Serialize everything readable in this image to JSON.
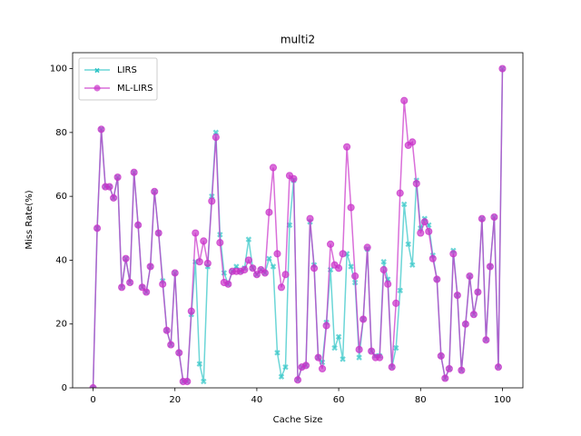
{
  "chart_data": {
    "type": "line",
    "title": "multi2",
    "xlabel": "Cache Size",
    "ylabel": "Miss Rate(%)",
    "x": [
      0,
      1,
      2,
      3,
      4,
      5,
      6,
      7,
      8,
      9,
      10,
      11,
      12,
      13,
      14,
      15,
      16,
      17,
      18,
      19,
      20,
      21,
      22,
      23,
      24,
      25,
      26,
      27,
      28,
      29,
      30,
      31,
      32,
      33,
      34,
      35,
      36,
      37,
      38,
      39,
      40,
      41,
      42,
      43,
      44,
      45,
      46,
      47,
      48,
      49,
      50,
      51,
      52,
      53,
      54,
      55,
      56,
      57,
      58,
      59,
      60,
      61,
      62,
      63,
      64,
      65,
      66,
      67,
      68,
      69,
      70,
      71,
      72,
      73,
      74,
      75,
      76,
      77,
      78,
      79,
      80,
      81,
      82,
      83,
      84,
      85,
      86,
      87,
      88,
      89,
      90,
      91,
      92,
      93,
      94,
      95,
      96,
      97,
      98,
      99,
      100
    ],
    "series": [
      {
        "name": "LIRS",
        "color": "#2ec4c6",
        "marker": "x",
        "values": [
          0,
          50,
          81,
          63,
          63,
          59.5,
          66,
          31.5,
          40.5,
          33,
          67.5,
          51,
          31.5,
          30,
          38,
          61.5,
          48.5,
          33.5,
          18,
          13.5,
          36,
          11,
          2,
          2,
          23,
          39.5,
          7.5,
          2,
          38,
          60,
          80,
          48,
          36,
          32.5,
          36.5,
          38,
          36.5,
          37.5,
          46.5,
          37.5,
          35.5,
          37,
          36,
          40.5,
          38,
          11,
          3.5,
          6.5,
          51,
          65,
          2.5,
          6.5,
          7,
          52,
          38.5,
          9.5,
          8,
          20.5,
          37,
          12.5,
          16,
          9,
          42,
          38,
          33,
          9.5,
          21.5,
          43.5,
          11.5,
          10,
          10,
          39.5,
          34,
          6.5,
          12.5,
          30.5,
          57.5,
          45,
          38.5,
          65,
          50,
          53,
          51,
          41.5,
          34,
          10,
          3,
          6,
          43,
          29,
          5.5,
          20,
          35,
          23,
          30,
          53,
          15,
          38,
          53.5,
          6.5,
          100
        ]
      },
      {
        "name": "ML-LIRS",
        "color": "#c930c9",
        "marker": "o",
        "values": [
          0,
          50,
          81,
          63,
          63,
          59.5,
          66,
          31.5,
          40.5,
          33,
          67.5,
          51,
          31.5,
          30,
          38,
          61.5,
          48.5,
          32.5,
          18,
          13.5,
          36,
          11,
          2,
          2,
          24,
          48.5,
          39.5,
          46,
          39,
          58.5,
          78.5,
          45.5,
          33,
          32.5,
          36.5,
          36.5,
          36.5,
          37,
          40,
          37.5,
          35.5,
          37,
          36,
          55,
          69,
          42,
          31.5,
          35.5,
          66.5,
          65.5,
          2.5,
          6.5,
          7,
          53,
          37.5,
          9.5,
          6,
          19.5,
          45,
          38.5,
          37.5,
          42,
          75.5,
          56.5,
          35,
          12,
          21.5,
          44,
          11.5,
          9.5,
          9.5,
          37,
          32.5,
          6.5,
          26.5,
          61,
          90,
          76,
          77,
          64,
          48.5,
          52,
          49,
          40.5,
          34,
          10,
          3,
          6,
          42,
          29,
          5.5,
          20,
          35,
          23,
          30,
          53,
          15,
          38,
          53.5,
          6.5,
          100
        ]
      }
    ],
    "xlim": [
      -5,
      105
    ],
    "ylim": [
      0,
      105
    ],
    "xticks": [
      0,
      20,
      40,
      60,
      80,
      100
    ],
    "yticks": [
      0,
      20,
      40,
      60,
      80,
      100
    ],
    "legend": "upper left"
  }
}
